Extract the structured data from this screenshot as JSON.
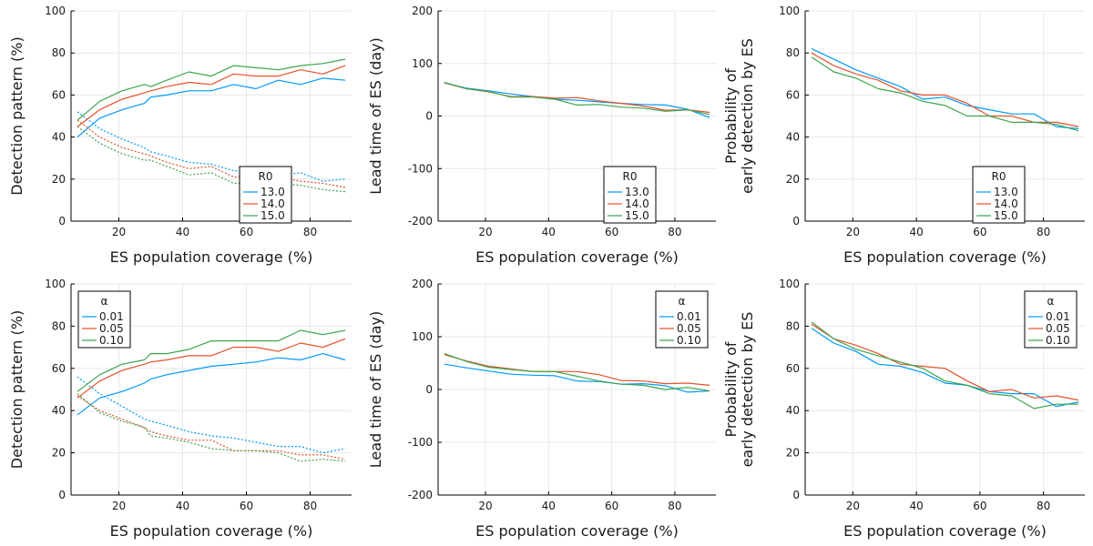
{
  "colors": {
    "blue": "#009AFA",
    "red": "#E3512B",
    "green": "#3DA44E"
  },
  "chart_data": [
    {
      "type": "line",
      "panel": "top-left",
      "xlabel": "ES population coverage (%)",
      "ylabel": [
        "Detection pattern (%)"
      ],
      "xlim": [
        5,
        93
      ],
      "ylim": [
        0,
        100
      ],
      "xticks": [
        20,
        40,
        60,
        80
      ],
      "yticks": [
        0,
        20,
        40,
        60,
        80,
        100
      ],
      "legend": {
        "title": "R0",
        "placement": "bottom-right"
      },
      "x": [
        7,
        14,
        21,
        28,
        30,
        35,
        42,
        49,
        56,
        63,
        70,
        77,
        84,
        91
      ],
      "series": [
        {
          "name": "13.0",
          "color": "blue",
          "style": "solid",
          "values": [
            40,
            49,
            53,
            56,
            59,
            60,
            62,
            62,
            65,
            63,
            67,
            65,
            68,
            67
          ]
        },
        {
          "name": "13.0",
          "color": "blue",
          "style": "dotted",
          "values": [
            52,
            44,
            39,
            35,
            33,
            31,
            28,
            27,
            24,
            23,
            22,
            23,
            19,
            20
          ]
        },
        {
          "name": "14.0",
          "color": "red",
          "style": "solid",
          "values": [
            45,
            53,
            58,
            61,
            62,
            64,
            66,
            65,
            70,
            69,
            69,
            72,
            70,
            74
          ]
        },
        {
          "name": "14.0",
          "color": "red",
          "style": "dotted",
          "values": [
            48,
            40,
            35,
            32,
            31,
            28,
            25,
            26,
            21,
            21,
            21,
            19,
            18,
            16
          ]
        },
        {
          "name": "15.0",
          "color": "green",
          "style": "solid",
          "values": [
            48,
            57,
            62,
            65,
            64,
            67,
            71,
            69,
            74,
            73,
            72,
            74,
            75,
            77
          ]
        },
        {
          "name": "15.0",
          "color": "green",
          "style": "dotted",
          "values": [
            45,
            37,
            32,
            29,
            29,
            26,
            22,
            23,
            18,
            18,
            18,
            17,
            15,
            14
          ]
        }
      ]
    },
    {
      "type": "line",
      "panel": "top-middle",
      "xlabel": "ES population coverage (%)",
      "ylabel": [
        "Lead time of ES (day)"
      ],
      "xlim": [
        5,
        93
      ],
      "ylim": [
        -200,
        200
      ],
      "xticks": [
        20,
        40,
        60,
        80
      ],
      "yticks": [
        -200,
        -100,
        0,
        100,
        200
      ],
      "legend": {
        "title": "R0",
        "placement": "bottom-right"
      },
      "x": [
        7,
        14,
        21,
        28,
        35,
        42,
        49,
        56,
        63,
        70,
        77,
        84,
        91
      ],
      "series": [
        {
          "name": "13.0",
          "color": "blue",
          "style": "solid",
          "values": [
            63,
            53,
            48,
            42,
            37,
            32,
            30,
            27,
            24,
            22,
            21,
            13,
            -3
          ]
        },
        {
          "name": "14.0",
          "color": "red",
          "style": "solid",
          "values": [
            63,
            52,
            46,
            37,
            37,
            34,
            35,
            29,
            24,
            19,
            11,
            12,
            7
          ]
        },
        {
          "name": "15.0",
          "color": "green",
          "style": "solid",
          "values": [
            64,
            52,
            47,
            36,
            36,
            32,
            21,
            22,
            17,
            15,
            9,
            12,
            3
          ]
        }
      ]
    },
    {
      "type": "line",
      "panel": "top-right",
      "xlabel": "ES population coverage (%)",
      "ylabel": [
        "Probability of",
        "early detection by ES"
      ],
      "xlim": [
        5,
        93
      ],
      "ylim": [
        0,
        100
      ],
      "xticks": [
        20,
        40,
        60,
        80
      ],
      "yticks": [
        0,
        20,
        40,
        60,
        80,
        100
      ],
      "legend": {
        "title": "R0",
        "placement": "bottom-right"
      },
      "x": [
        7,
        14,
        21,
        28,
        35,
        42,
        49,
        56,
        63,
        70,
        77,
        84,
        91
      ],
      "series": [
        {
          "name": "13.0",
          "color": "blue",
          "style": "solid",
          "values": [
            82,
            77,
            72,
            68,
            64,
            58,
            59,
            55,
            53,
            51,
            51,
            45,
            44
          ]
        },
        {
          "name": "14.0",
          "color": "red",
          "style": "solid",
          "values": [
            80,
            74,
            70,
            67,
            62,
            60,
            60,
            56,
            50,
            50,
            47,
            47,
            45
          ]
        },
        {
          "name": "15.0",
          "color": "green",
          "style": "solid",
          "values": [
            78,
            71,
            68,
            63,
            61,
            57,
            55,
            50,
            50,
            47,
            47,
            46,
            43
          ]
        }
      ]
    },
    {
      "type": "line",
      "panel": "bottom-left",
      "xlabel": "ES population coverage (%)",
      "ylabel": [
        "Detection pattern (%)"
      ],
      "xlim": [
        5,
        93
      ],
      "ylim": [
        0,
        100
      ],
      "xticks": [
        20,
        40,
        60,
        80
      ],
      "yticks": [
        0,
        20,
        40,
        60,
        80,
        100
      ],
      "legend": {
        "title": "α",
        "placement": "top-left"
      },
      "x": [
        7,
        14,
        21,
        28,
        30,
        35,
        42,
        49,
        56,
        63,
        70,
        77,
        84,
        91
      ],
      "series": [
        {
          "name": "0.01",
          "color": "blue",
          "style": "solid",
          "values": [
            38,
            46,
            49,
            53,
            55,
            57,
            59,
            61,
            62,
            63,
            65,
            64,
            67,
            64
          ]
        },
        {
          "name": "0.01",
          "color": "blue",
          "style": "dotted",
          "values": [
            56,
            48,
            42,
            36,
            35,
            33,
            30,
            28,
            27,
            25,
            23,
            23,
            20,
            22
          ]
        },
        {
          "name": "0.05",
          "color": "red",
          "style": "solid",
          "values": [
            46,
            54,
            59,
            62,
            63,
            64,
            66,
            66,
            70,
            70,
            68,
            72,
            70,
            74
          ]
        },
        {
          "name": "0.05",
          "color": "red",
          "style": "dotted",
          "values": [
            47,
            40,
            36,
            32,
            30,
            28,
            26,
            26,
            21,
            21,
            21,
            19,
            19,
            17
          ]
        },
        {
          "name": "0.10",
          "color": "green",
          "style": "solid",
          "values": [
            49,
            57,
            62,
            64,
            67,
            67,
            69,
            73,
            73,
            73,
            73,
            78,
            76,
            78
          ]
        },
        {
          "name": "0.10",
          "color": "green",
          "style": "dotted",
          "values": [
            48,
            39,
            35,
            32,
            28,
            27,
            25,
            22,
            21,
            21,
            20,
            16,
            17,
            16
          ]
        }
      ]
    },
    {
      "type": "line",
      "panel": "bottom-middle",
      "xlabel": "ES population coverage (%)",
      "ylabel": [
        "Lead time of ES (day)"
      ],
      "xlim": [
        5,
        93
      ],
      "ylim": [
        -200,
        200
      ],
      "xticks": [
        20,
        40,
        60,
        80
      ],
      "yticks": [
        -200,
        -100,
        0,
        100,
        200
      ],
      "legend": {
        "title": "α",
        "placement": "top-right"
      },
      "x": [
        7,
        14,
        21,
        28,
        35,
        42,
        49,
        56,
        63,
        70,
        77,
        84,
        91
      ],
      "series": [
        {
          "name": "0.01",
          "color": "blue",
          "style": "solid",
          "values": [
            48,
            41,
            35,
            29,
            27,
            26,
            16,
            15,
            10,
            11,
            7,
            -5,
            -3
          ]
        },
        {
          "name": "0.05",
          "color": "red",
          "style": "solid",
          "values": [
            66,
            54,
            44,
            39,
            34,
            34,
            34,
            28,
            17,
            16,
            11,
            12,
            8
          ]
        },
        {
          "name": "0.10",
          "color": "green",
          "style": "solid",
          "values": [
            68,
            53,
            42,
            38,
            34,
            34,
            25,
            16,
            10,
            8,
            0,
            4,
            -3
          ]
        }
      ]
    },
    {
      "type": "line",
      "panel": "bottom-right",
      "xlabel": "ES population coverage (%)",
      "ylabel": [
        "Probability of",
        "early detection by ES"
      ],
      "xlim": [
        5,
        93
      ],
      "ylim": [
        0,
        100
      ],
      "xticks": [
        20,
        40,
        60,
        80
      ],
      "yticks": [
        0,
        20,
        40,
        60,
        80,
        100
      ],
      "legend": {
        "title": "α",
        "placement": "top-right"
      },
      "x": [
        7,
        14,
        21,
        28,
        35,
        42,
        49,
        56,
        63,
        70,
        77,
        84,
        91
      ],
      "series": [
        {
          "name": "0.01",
          "color": "blue",
          "style": "solid",
          "values": [
            79,
            72,
            68,
            62,
            61,
            58,
            53,
            52,
            49,
            48,
            48,
            42,
            44
          ]
        },
        {
          "name": "0.05",
          "color": "red",
          "style": "solid",
          "values": [
            81,
            74,
            71,
            67,
            62,
            61,
            60,
            54,
            49,
            50,
            46,
            47,
            45
          ]
        },
        {
          "name": "0.10",
          "color": "green",
          "style": "solid",
          "values": [
            82,
            74,
            69,
            66,
            63,
            60,
            54,
            52,
            48,
            47,
            41,
            43,
            43
          ]
        }
      ]
    }
  ]
}
